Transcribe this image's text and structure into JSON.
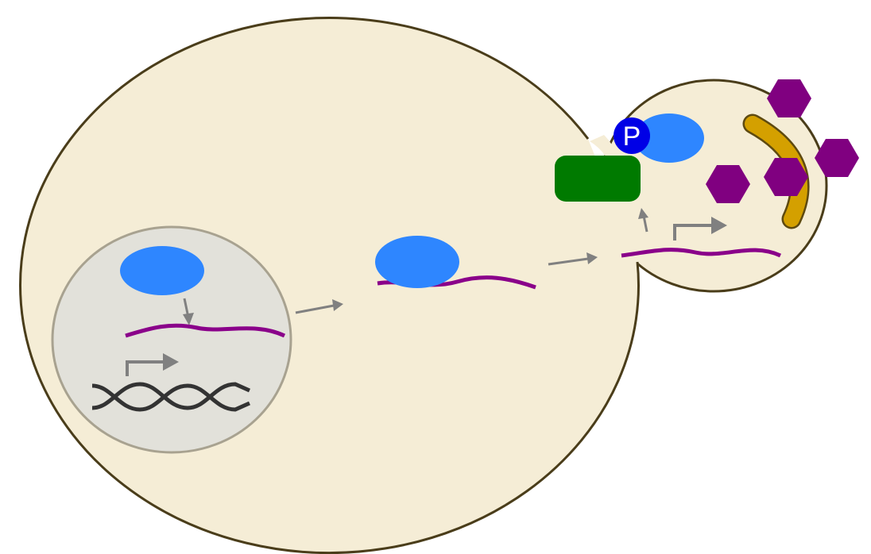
{
  "diagram": {
    "phospho_label": "P",
    "colors": {
      "cytoplasm": "#f5edd6",
      "cell_outline": "#4a3d1a",
      "nucleus_fill": "#e2e1da",
      "nucleus_outline": "#a8a290",
      "protein_blue": "#2e86ff",
      "mrna_purple": "#8a008a",
      "dna_dark": "#333333",
      "arrow_gray": "#808080",
      "kinase_green": "#007a00",
      "phosphate_blue": "#0000e6",
      "ligand_purple": "#800080",
      "actin_gold": "#d4a000",
      "actin_outline": "#5e4a10"
    },
    "icons": [
      "dna-double-helix-icon",
      "promoter-arrow-icon",
      "hexagon-molecule-icon",
      "phosphate-icon"
    ]
  }
}
